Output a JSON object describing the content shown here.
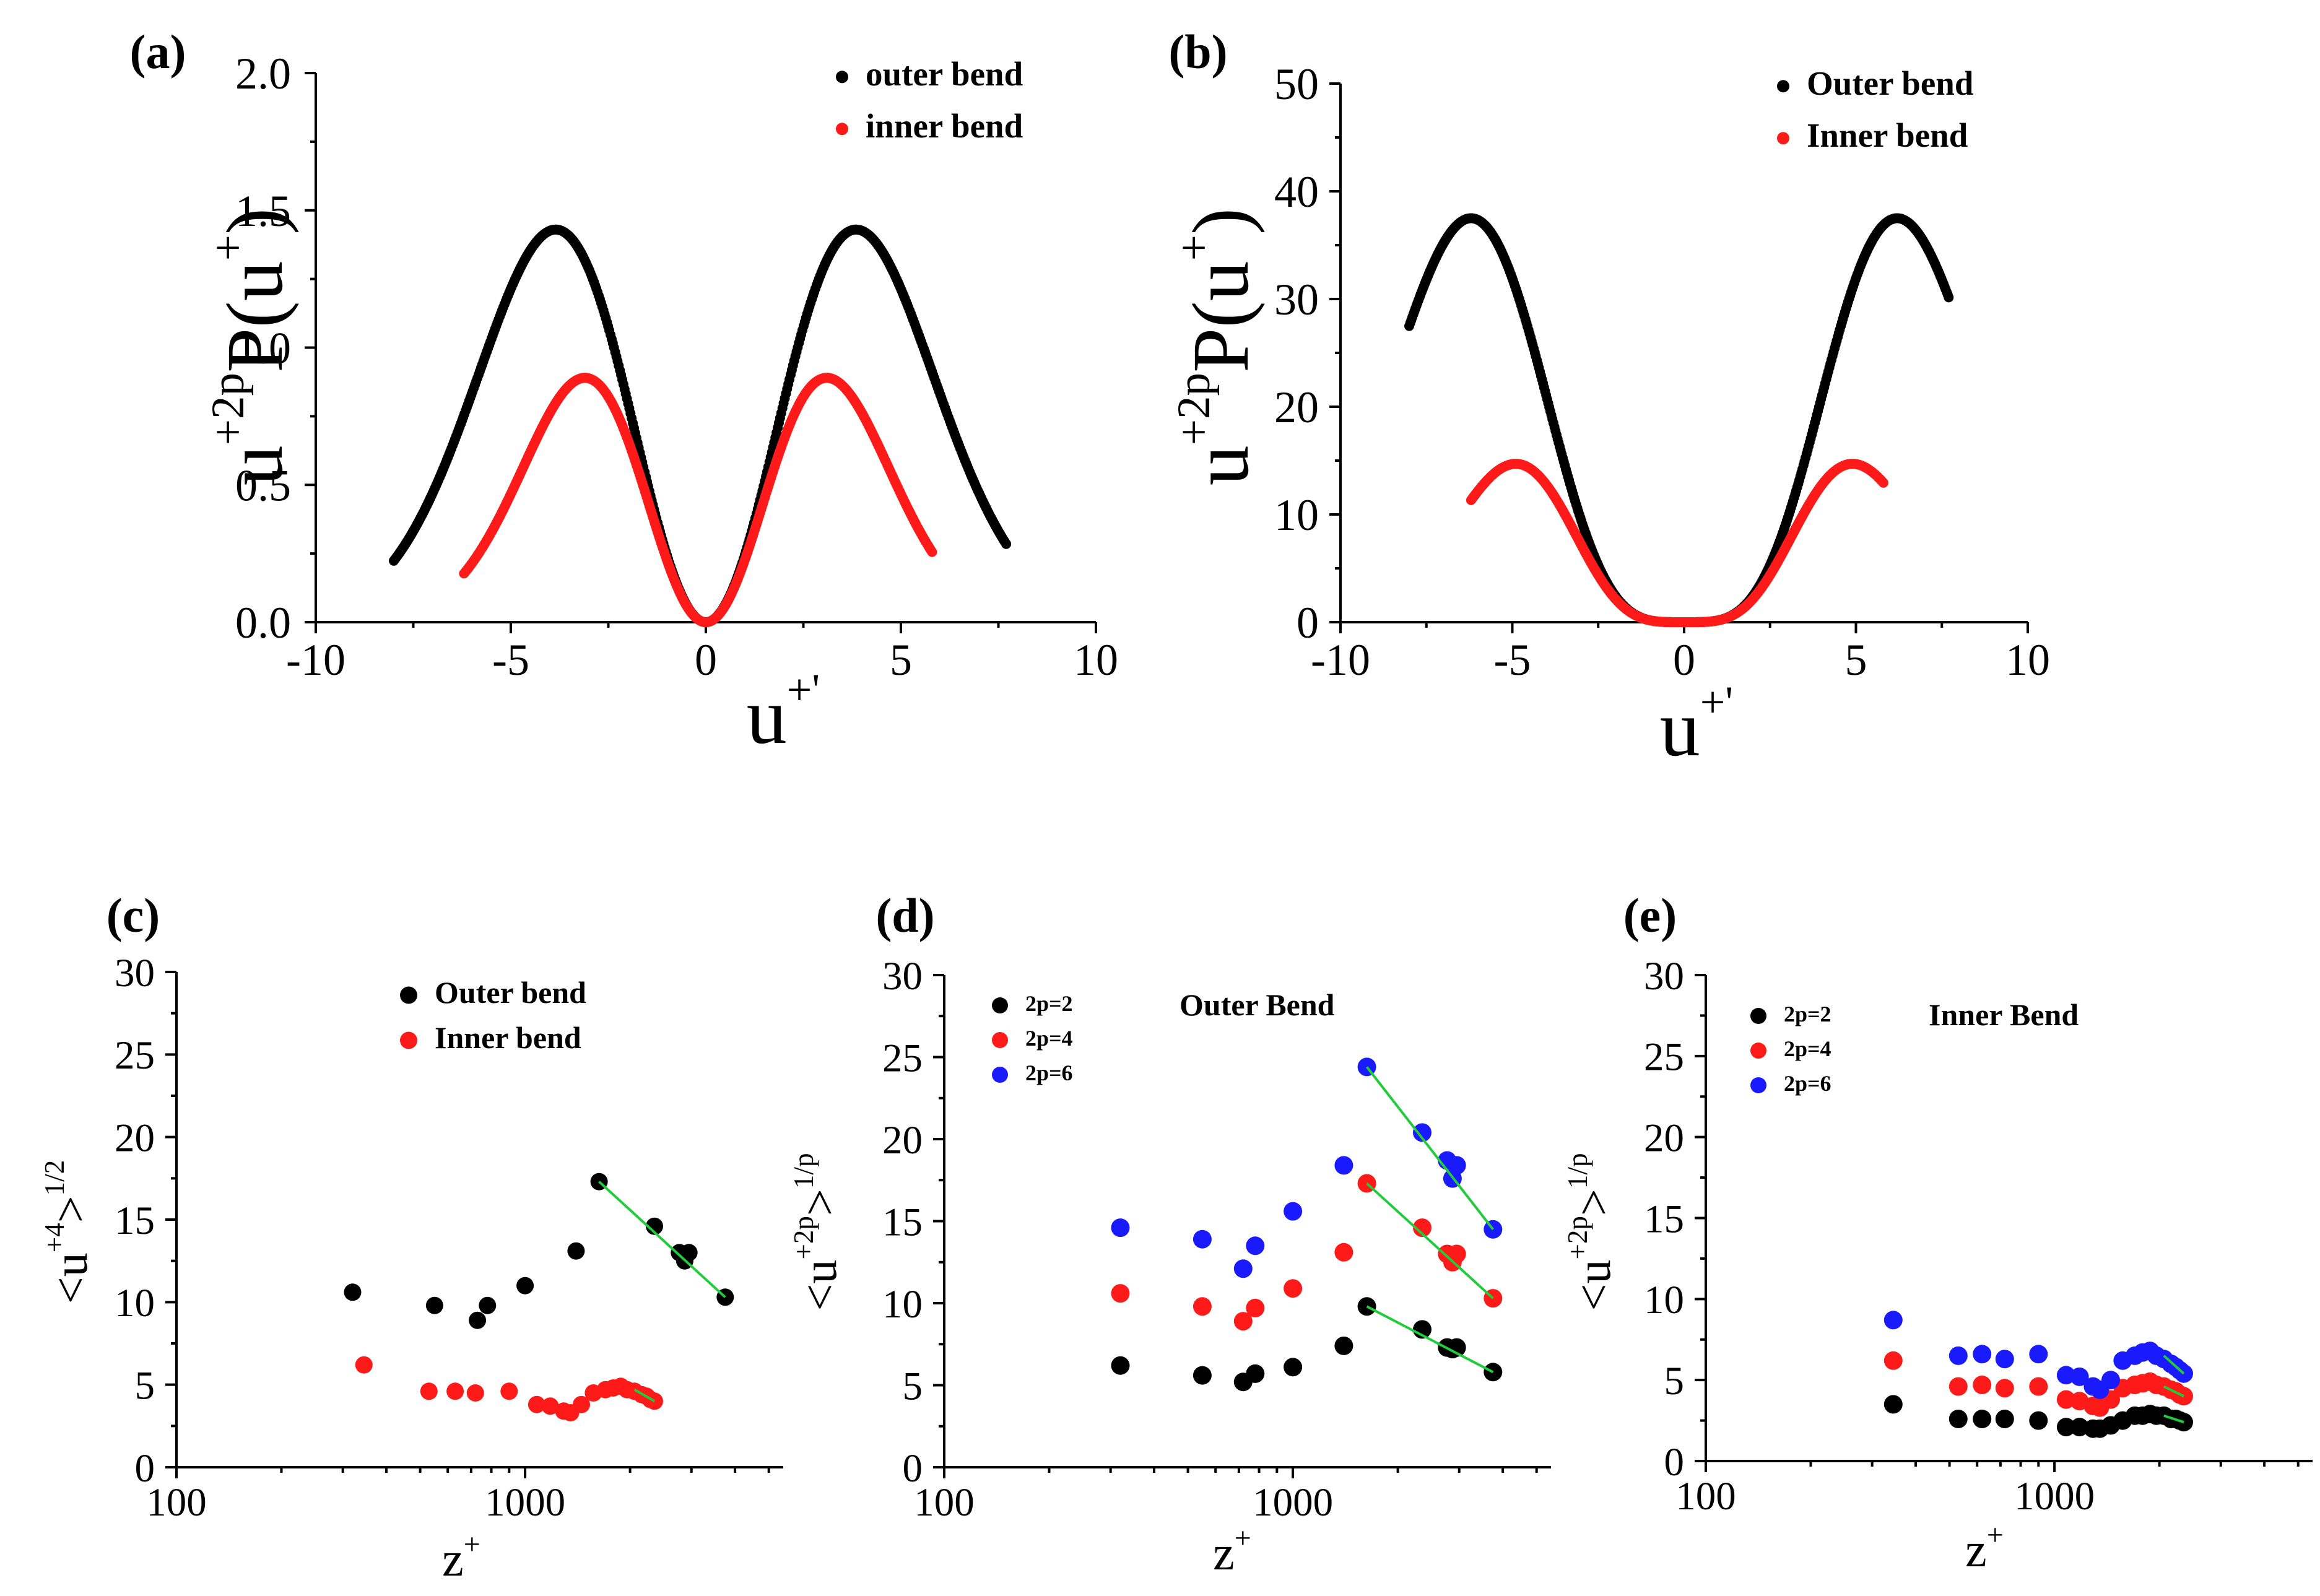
{
  "chart_data": [
    {
      "panel": "(a)",
      "type": "scatter",
      "title": "",
      "xlabel": "u",
      "xlabel_sup": "+'",
      "ylabel": "u",
      "ylabel_sup": "+2p",
      "ylabel_tail": "P(u",
      "ylabel_tail_sup": "+",
      "ylabel_close": ")",
      "xlim": [
        -10,
        10
      ],
      "ylim": [
        0,
        2
      ],
      "xticks": [
        "-10",
        "-5",
        "0",
        "5",
        "10"
      ],
      "yticks": [
        "0.0",
        "0.5",
        "1.0",
        "1.5",
        "2.0"
      ],
      "series": [
        {
          "name": "outer bend",
          "color": "#000000",
          "curve": {
            "x_min": -8.0,
            "x_max": 7.7,
            "amp": 1.43,
            "peak": 3.85,
            "gauss": true
          }
        },
        {
          "name": "inner bend",
          "color": "#ff1a1a",
          "curve": {
            "x_min": -6.2,
            "x_max": 5.8,
            "amp": 0.89,
            "peak": 3.1,
            "gauss": true
          }
        }
      ]
    },
    {
      "panel": "(b)",
      "type": "scatter",
      "title": "",
      "xlabel": "u",
      "xlabel_sup": "+'",
      "ylabel": "u",
      "ylabel_sup": "+2p",
      "ylabel_tail": "P(u",
      "ylabel_tail_sup": "+",
      "ylabel_close": ")",
      "xlim": [
        -10,
        10
      ],
      "ylim": [
        0,
        50
      ],
      "xticks": [
        "-10",
        "-5",
        "0",
        "5",
        "10"
      ],
      "yticks": [
        "0",
        "10",
        "20",
        "30",
        "40",
        "50"
      ],
      "series": [
        {
          "name": "Outer bend",
          "color": "#000000",
          "curve": {
            "x_min": -8.0,
            "x_max": 7.7,
            "amp": 37.5,
            "peak": 6.2,
            "gauss": false
          }
        },
        {
          "name": "Inner bend",
          "color": "#ff1a1a",
          "curve": {
            "x_min": -6.2,
            "x_max": 5.8,
            "amp": 14.7,
            "peak": 4.9,
            "gauss": false
          }
        }
      ]
    },
    {
      "panel": "(c)",
      "type": "scatter",
      "xscale": "log",
      "xlabel": "z",
      "xlabel_sup": "+",
      "ylabel": "<u",
      "ylabel_sup": "+4",
      "ylabel_tail": ">",
      "ylabel_tail_sup": "1/2",
      "xlim": [
        100,
        5500
      ],
      "ylim": [
        0,
        30
      ],
      "xticks": [
        {
          "v": 100,
          "label": "100"
        },
        {
          "v": 1000,
          "label": "1000"
        }
      ],
      "yticks": [
        "0",
        "5",
        "10",
        "15",
        "20",
        "25",
        "30"
      ],
      "series": [
        {
          "name": "Outer bend",
          "color": "#000000",
          "x": [
            320,
            550,
            730,
            780,
            1000,
            1400,
            1630,
            2350,
            2770,
            2870,
            2950,
            3750
          ],
          "y": [
            10.6,
            9.8,
            8.9,
            9.8,
            11.0,
            13.1,
            17.3,
            14.6,
            13.0,
            12.5,
            13.0,
            10.3
          ],
          "fit": {
            "x": [
              1630,
              3750
            ],
            "y": [
              17.3,
              10.3
            ]
          }
        },
        {
          "name": "Inner bend",
          "color": "#ff1a1a",
          "x": [
            345,
            530,
            630,
            720,
            900,
            1080,
            1180,
            1290,
            1350,
            1450,
            1570,
            1700,
            1790,
            1880,
            1960,
            2060,
            2160,
            2230,
            2290,
            2350
          ],
          "y": [
            6.2,
            4.6,
            4.6,
            4.5,
            4.6,
            3.8,
            3.7,
            3.4,
            3.3,
            3.8,
            4.5,
            4.7,
            4.8,
            4.9,
            4.7,
            4.6,
            4.4,
            4.3,
            4.1,
            4.0
          ],
          "fit": {
            "x": [
              2060,
              2350
            ],
            "y": [
              4.7,
              4.0
            ]
          }
        }
      ]
    },
    {
      "panel": "(d)",
      "type": "scatter",
      "xscale": "log",
      "title": "Outer Bend",
      "xlabel": "z",
      "xlabel_sup": "+",
      "ylabel": "<u",
      "ylabel_sup": "+2p",
      "ylabel_tail": ">",
      "ylabel_tail_sup": "1/p",
      "xlim": [
        100,
        5500
      ],
      "ylim": [
        0,
        30
      ],
      "xticks": [
        {
          "v": 100,
          "label": "100"
        },
        {
          "v": 1000,
          "label": "1000"
        }
      ],
      "yticks": [
        "0",
        "5",
        "10",
        "15",
        "20",
        "25",
        "30"
      ],
      "series": [
        {
          "name": "2p=2",
          "color": "#000000",
          "x": [
            320,
            550,
            720,
            780,
            1000,
            1400,
            1630,
            2350,
            2770,
            2870,
            2950,
            3750
          ],
          "y": [
            6.2,
            5.6,
            5.2,
            5.7,
            6.1,
            7.4,
            9.8,
            8.4,
            7.3,
            7.2,
            7.3,
            5.8
          ],
          "fit": {
            "x": [
              1630,
              3750
            ],
            "y": [
              9.8,
              5.8
            ]
          }
        },
        {
          "name": "2p=4",
          "color": "#ff1a1a",
          "x": [
            320,
            550,
            720,
            780,
            1000,
            1400,
            1630,
            2350,
            2770,
            2870,
            2950,
            3750
          ],
          "y": [
            10.6,
            9.8,
            8.9,
            9.7,
            10.9,
            13.1,
            17.3,
            14.6,
            13.0,
            12.5,
            13.0,
            10.3
          ],
          "fit": {
            "x": [
              1630,
              3750
            ],
            "y": [
              17.3,
              10.3
            ]
          }
        },
        {
          "name": "2p=6",
          "color": "#1a1aff",
          "x": [
            320,
            550,
            720,
            780,
            1000,
            1400,
            1630,
            2350,
            2770,
            2870,
            2950,
            3750
          ],
          "y": [
            14.6,
            13.9,
            12.1,
            13.5,
            15.6,
            18.4,
            24.4,
            20.4,
            18.7,
            17.6,
            18.4,
            14.5
          ],
          "fit": {
            "x": [
              1630,
              3750
            ],
            "y": [
              24.4,
              14.5
            ]
          }
        }
      ]
    },
    {
      "panel": "(e)",
      "type": "scatter",
      "xscale": "log",
      "title": "Inner Bend",
      "xlabel": "z",
      "xlabel_sup": "+",
      "ylabel": "<u",
      "ylabel_sup": "+2p",
      "ylabel_tail": ">",
      "ylabel_tail_sup": "1/p",
      "xlim": [
        100,
        5500
      ],
      "ylim": [
        0,
        30
      ],
      "xticks": [
        {
          "v": 100,
          "label": "100"
        },
        {
          "v": 1000,
          "label": "1000"
        }
      ],
      "yticks": [
        "0",
        "5",
        "10",
        "15",
        "20",
        "25",
        "30"
      ],
      "series": [
        {
          "name": "2p=2",
          "color": "#000000",
          "x": [
            345,
            530,
            620,
            720,
            900,
            1080,
            1180,
            1290,
            1350,
            1450,
            1570,
            1700,
            1790,
            1880,
            1960,
            2060,
            2160,
            2230,
            2290,
            2350
          ],
          "y": [
            3.5,
            2.6,
            2.6,
            2.6,
            2.5,
            2.1,
            2.1,
            2.0,
            2.0,
            2.2,
            2.5,
            2.8,
            2.8,
            2.9,
            2.8,
            2.8,
            2.6,
            2.6,
            2.5,
            2.4
          ],
          "fit": {
            "x": [
              2060,
              2350
            ],
            "y": [
              2.8,
              2.4
            ]
          }
        },
        {
          "name": "2p=4",
          "color": "#ff1a1a",
          "x": [
            345,
            530,
            620,
            720,
            900,
            1080,
            1180,
            1290,
            1350,
            1450,
            1570,
            1700,
            1790,
            1880,
            1960,
            2060,
            2160,
            2230,
            2290,
            2350
          ],
          "y": [
            6.2,
            4.6,
            4.7,
            4.5,
            4.6,
            3.8,
            3.7,
            3.4,
            3.3,
            3.8,
            4.5,
            4.7,
            4.8,
            4.9,
            4.7,
            4.6,
            4.4,
            4.3,
            4.1,
            4.0
          ],
          "fit": {
            "x": [
              2060,
              2350
            ],
            "y": [
              4.6,
              4.0
            ]
          }
        },
        {
          "name": "2p=6",
          "color": "#1a1aff",
          "x": [
            345,
            530,
            620,
            720,
            900,
            1080,
            1180,
            1290,
            1350,
            1450,
            1570,
            1700,
            1790,
            1880,
            1960,
            2060,
            2160,
            2230,
            2290,
            2350
          ],
          "y": [
            8.7,
            6.5,
            6.6,
            6.3,
            6.6,
            5.3,
            5.2,
            4.6,
            4.4,
            5.0,
            6.2,
            6.5,
            6.7,
            6.8,
            6.5,
            6.3,
            6.0,
            5.8,
            5.6,
            5.4
          ],
          "fit": {
            "x": [
              2060,
              2350
            ],
            "y": [
              6.5,
              5.4
            ]
          }
        }
      ]
    }
  ]
}
